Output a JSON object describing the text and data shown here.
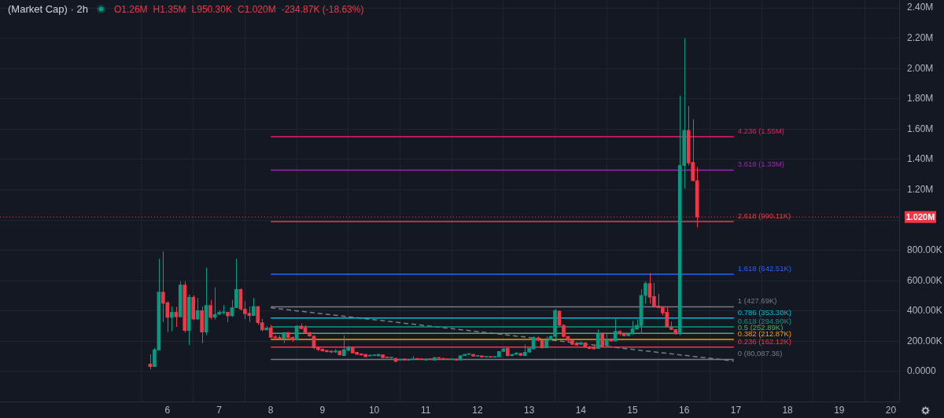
{
  "chart_data": {
    "type": "candlestick",
    "title": "(Market Cap) · 2h",
    "annotations": [
      "O1.26M",
      "H1.35M",
      "L950.30K",
      "C1.020M",
      "-234.87K (-18.63%)"
    ],
    "series": [
      {
        "x": [
          5.6667,
          5.75,
          5.8333,
          5.9167,
          6,
          6.0833,
          6.1667,
          6.25,
          6.3333,
          6.4167,
          6.5,
          6.5833,
          6.6667,
          6.75,
          6.8333,
          6.9167,
          7,
          7.0833,
          7.1667,
          7.25,
          7.3333,
          7.4167,
          7.5,
          7.5833,
          7.6667,
          7.75,
          7.8333,
          7.9167,
          8,
          8.0833,
          8.1667,
          8.25,
          8.3333,
          8.4167,
          8.5,
          8.5833,
          8.6667,
          8.75,
          8.8333,
          8.9167,
          9,
          9.0833,
          9.1667,
          9.25,
          9.3333,
          9.4167,
          9.5,
          9.5833,
          9.6667,
          9.75,
          9.8333,
          9.9167,
          10,
          10.0833,
          10.1667,
          10.25,
          10.3333,
          10.4167,
          10.5,
          10.5833,
          10.6667,
          10.75,
          10.8333,
          10.9167,
          11,
          11.0833,
          11.1667,
          11.25,
          11.3333,
          11.4167,
          11.5,
          11.5833,
          11.6667,
          11.75,
          11.8333,
          11.9167,
          12,
          12.0833,
          12.1667,
          12.25,
          12.3333,
          12.4167,
          12.5,
          12.5833,
          12.6667,
          12.75,
          12.8333,
          12.9167,
          13,
          13.0833,
          13.1667,
          13.25,
          13.3333,
          13.4167,
          13.5,
          13.5833,
          13.6667,
          13.75,
          13.8333,
          13.9167,
          14,
          14.0833,
          14.1667,
          14.25,
          14.3333,
          14.4167,
          14.5,
          14.5833,
          14.6667,
          14.75,
          14.8333,
          14.9167,
          15,
          15.0833,
          15.1667,
          15.25,
          15.3333,
          15.4167,
          15.5,
          15.5833,
          15.6667,
          15.75,
          15.8333,
          15.9167,
          16,
          16.0833,
          16.1667,
          16.25
        ],
        "ohlc": [
          [
            50000,
            115000,
            16000,
            33000
          ],
          [
            33000,
            157000,
            33000,
            145000
          ],
          [
            142000,
            745000,
            142000,
            525000
          ],
          [
            525000,
            793000,
            327000,
            451000
          ],
          [
            455000,
            465000,
            261000,
            358000
          ],
          [
            358000,
            430000,
            266000,
            392000
          ],
          [
            392000,
            428000,
            295000,
            361000
          ],
          [
            361000,
            595000,
            361000,
            572000
          ],
          [
            572000,
            595000,
            258000,
            271000
          ],
          [
            271000,
            508000,
            175000,
            491000
          ],
          [
            491000,
            503000,
            340000,
            347000
          ],
          [
            347000,
            486000,
            340000,
            403000
          ],
          [
            403000,
            430000,
            188000,
            261000
          ],
          [
            261000,
            686000,
            240000,
            437000
          ],
          [
            437000,
            473000,
            344000,
            358000
          ],
          [
            358000,
            555000,
            344000,
            378000
          ],
          [
            378000,
            404000,
            375000,
            392000
          ],
          [
            389000,
            439000,
            378000,
            392000
          ],
          [
            392000,
            395000,
            327000,
            368000
          ],
          [
            368000,
            473000,
            361000,
            422000
          ],
          [
            422000,
            745000,
            420000,
            543000
          ],
          [
            543000,
            548000,
            404000,
            413000
          ],
          [
            413000,
            465000,
            347000,
            382000
          ],
          [
            385000,
            430000,
            327000,
            370000
          ],
          [
            370000,
            486000,
            368000,
            430000
          ],
          [
            430000,
            432000,
            309000,
            323000
          ],
          [
            323000,
            347000,
            266000,
            275000
          ],
          [
            275000,
            301000,
            273000,
            289000
          ],
          [
            290000,
            309000,
            222000,
            226000
          ],
          [
            230000,
            240000,
            215000,
            223000
          ],
          [
            226000,
            240000,
            210000,
            220000
          ],
          [
            220000,
            260000,
            188000,
            258000
          ],
          [
            258000,
            262000,
            220000,
            223000
          ],
          [
            226000,
            232000,
            197000,
            209000
          ],
          [
            209000,
            306000,
            205000,
            301000
          ],
          [
            301000,
            318000,
            280000,
            283000
          ],
          [
            289000,
            306000,
            255000,
            258000
          ],
          [
            258000,
            262000,
            230000,
            235000
          ],
          [
            235000,
            240000,
            147000,
            157000
          ],
          [
            162000,
            168000,
            136000,
            145000
          ],
          [
            149000,
            152000,
            133000,
            136000
          ],
          [
            140000,
            143000,
            128000,
            131000
          ],
          [
            136000,
            140000,
            122000,
            129000
          ],
          [
            129000,
            148000,
            124000,
            136000
          ],
          [
            136000,
            140000,
            108000,
            110000
          ],
          [
            105000,
            240000,
            103000,
            145000
          ],
          [
            140000,
            170000,
            135000,
            162000
          ],
          [
            157000,
            160000,
            120000,
            123000
          ],
          [
            128000,
            130000,
            110000,
            114000
          ],
          [
            118000,
            120000,
            106000,
            110000
          ],
          [
            114000,
            116000,
            95000,
            98000
          ],
          [
            103000,
            112000,
            100000,
            109000
          ],
          [
            106000,
            112000,
            102000,
            108000
          ],
          [
            104000,
            116000,
            100000,
            114000
          ],
          [
            112000,
            114000,
            88000,
            92000
          ],
          [
            95000,
            98000,
            88000,
            92000
          ],
          [
            90000,
            96000,
            86000,
            93000
          ],
          [
            88000,
            92000,
            63000,
            67000
          ],
          [
            76000,
            86000,
            72000,
            82000
          ],
          [
            84000,
            86000,
            74000,
            76000
          ],
          [
            76000,
            84000,
            72000,
            80000
          ],
          [
            80000,
            101000,
            76000,
            84000
          ],
          [
            84000,
            88000,
            78000,
            82000
          ],
          [
            82000,
            86000,
            76000,
            80000
          ],
          [
            76000,
            86000,
            74000,
            84000
          ],
          [
            84000,
            88000,
            78000,
            80000
          ],
          [
            76000,
            95000,
            74000,
            93000
          ],
          [
            93000,
            96000,
            84000,
            88000
          ],
          [
            88000,
            90000,
            80000,
            81000
          ],
          [
            84000,
            88000,
            78000,
            80000
          ],
          [
            80000,
            86000,
            78000,
            84000
          ],
          [
            84000,
            86000,
            74000,
            76000
          ],
          [
            76000,
            108000,
            74000,
            105000
          ],
          [
            105000,
            118000,
            104000,
            114000
          ],
          [
            114000,
            120000,
            110000,
            117000
          ],
          [
            114000,
            118000,
            100000,
            102000
          ],
          [
            102000,
            108000,
            98000,
            104000
          ],
          [
            105000,
            107000,
            94000,
            96000
          ],
          [
            96000,
            102000,
            92000,
            99000
          ],
          [
            99000,
            102000,
            93000,
            95000
          ],
          [
            95000,
            100000,
            92000,
            97000
          ],
          [
            97000,
            136000,
            95000,
            133000
          ],
          [
            133000,
            155000,
            130000,
            150000
          ],
          [
            154000,
            156000,
            100000,
            105000
          ],
          [
            105000,
            118000,
            102000,
            114000
          ],
          [
            114000,
            128000,
            112000,
            123000
          ],
          [
            121000,
            124000,
            104000,
            107000
          ],
          [
            105000,
            180000,
            103000,
            128000
          ],
          [
            128000,
            158000,
            126000,
            154000
          ],
          [
            150000,
            232000,
            148000,
            226000
          ],
          [
            223000,
            232000,
            200000,
            206000
          ],
          [
            206000,
            210000,
            152000,
            157000
          ],
          [
            157000,
            232000,
            155000,
            209000
          ],
          [
            209000,
            240000,
            205000,
            232000
          ],
          [
            232000,
            413000,
            214000,
            404000
          ],
          [
            399000,
            404000,
            300000,
            306000
          ],
          [
            306000,
            312000,
            225000,
            232000
          ],
          [
            232000,
            236000,
            200000,
            206000
          ],
          [
            206000,
            210000,
            175000,
            180000
          ],
          [
            185000,
            192000,
            170000,
            175000
          ],
          [
            180000,
            200000,
            176000,
            190000
          ],
          [
            190000,
            195000,
            155000,
            160000
          ],
          [
            162000,
            170000,
            148000,
            152000
          ],
          [
            165000,
            172000,
            145000,
            150000
          ],
          [
            152000,
            278000,
            150000,
            248000
          ],
          [
            249000,
            259000,
            162000,
            171000
          ],
          [
            171000,
            259000,
            168000,
            214000
          ],
          [
            214000,
            220000,
            198000,
            202000
          ],
          [
            202000,
            347000,
            200000,
            266000
          ],
          [
            266000,
            272000,
            240000,
            249000
          ],
          [
            254000,
            258000,
            232000,
            237000
          ],
          [
            237000,
            252000,
            232000,
            249000
          ],
          [
            249000,
            335000,
            245000,
            283000
          ],
          [
            280000,
            344000,
            278000,
            306000
          ],
          [
            304000,
            543000,
            249000,
            503000
          ],
          [
            503000,
            594000,
            448000,
            582000
          ],
          [
            582000,
            650000,
            448000,
            491000
          ],
          [
            496000,
            586000,
            422000,
            430000
          ],
          [
            434000,
            513000,
            418000,
            422000
          ],
          [
            422000,
            430000,
            370000,
            387000
          ],
          [
            392000,
            430000,
            290000,
            295000
          ],
          [
            295000,
            330000,
            275000,
            278000
          ],
          [
            278000,
            282000,
            245000,
            249000
          ],
          [
            249000,
            1821000,
            240000,
            1360000
          ],
          [
            1360000,
            2200000,
            1208000,
            1592000
          ],
          [
            1592000,
            1752000,
            1360000,
            1377000
          ],
          [
            1381000,
            1666000,
            1255000,
            1260000
          ],
          [
            1260000,
            1350000,
            950300,
            1020000
          ]
        ],
        "colors": [
          "#f23645",
          "#089981",
          "#089981",
          "#f23645",
          "#f23645",
          "#089981",
          "#f23645",
          "#089981",
          "#f23645",
          "#089981",
          "#f23645",
          "#089981",
          "#f23645",
          "#089981",
          "#f23645",
          "#089981",
          "#089981",
          "#089981",
          "#f23645",
          "#089981",
          "#089981",
          "#f23645",
          "#f23645",
          "#f23645",
          "#089981",
          "#f23645",
          "#f23645",
          "#089981",
          "#f23645",
          "#f23645",
          "#f23645",
          "#089981",
          "#f23645",
          "#f23645",
          "#089981",
          "#f23645",
          "#f23645",
          "#f23645",
          "#f23645",
          "#f23645",
          "#f23645",
          "#f23645",
          "#f23645",
          "#089981",
          "#f23645",
          "#089981",
          "#089981",
          "#f23645",
          "#f23645",
          "#f23645",
          "#f23645",
          "#089981",
          "#089981",
          "#089981",
          "#f23645",
          "#f23645",
          "#089981",
          "#f23645",
          "#089981",
          "#f23645",
          "#089981",
          "#089981",
          "#f23645",
          "#f23645",
          "#089981",
          "#f23645",
          "#089981",
          "#f23645",
          "#f23645",
          "#f23645",
          "#089981",
          "#f23645",
          "#089981",
          "#089981",
          "#089981",
          "#f23645",
          "#089981",
          "#f23645",
          "#089981",
          "#f23645",
          "#089981",
          "#089981",
          "#089981",
          "#f23645",
          "#089981",
          "#089981",
          "#f23645",
          "#089981",
          "#089981",
          "#089981",
          "#f23645",
          "#f23645",
          "#089981",
          "#089981",
          "#089981",
          "#f23645",
          "#f23645",
          "#f23645",
          "#f23645",
          "#f23645",
          "#089981",
          "#f23645",
          "#f23645",
          "#f23645",
          "#089981",
          "#f23645",
          "#089981",
          "#f23645",
          "#089981",
          "#f23645",
          "#f23645",
          "#089981",
          "#089981",
          "#089981",
          "#089981",
          "#089981",
          "#f23645",
          "#f23645",
          "#f23645",
          "#f23645",
          "#f23645",
          "#f23645",
          "#f23645",
          "#089981",
          "#089981",
          "#f23645",
          "#f23645",
          "#f23645"
        ]
      },
      {
        "type": "line",
        "name": "4.236 (1.55M)",
        "color": "#e91e63",
        "x": [
          8,
          16.96
        ],
        "values": [
          1550000,
          1550000
        ]
      },
      {
        "type": "line",
        "name": "3.618 (1.33M)",
        "color": "#9c27b0",
        "x": [
          8,
          16.96
        ],
        "values": [
          1330000,
          1330000
        ]
      },
      {
        "type": "line",
        "name": "2.618 (990.11K)",
        "color": "#f23645",
        "x": [
          8,
          16.96
        ],
        "values": [
          990110,
          990110
        ]
      },
      {
        "type": "line",
        "name": "1.618 (642.51K)",
        "color": "#2962ff",
        "x": [
          8,
          16.96
        ],
        "values": [
          642510,
          642510
        ]
      },
      {
        "type": "line",
        "name": "1 (427.69K)",
        "color": "#787b86",
        "x": [
          8,
          16.96
        ],
        "values": [
          427690,
          427690
        ]
      },
      {
        "type": "line",
        "name": "0.786 (353.30K)",
        "color": "#00bcd4",
        "x": [
          8,
          16.96
        ],
        "values": [
          353300,
          353300
        ]
      },
      {
        "type": "line",
        "name": "0.618 (294.90K)",
        "color": "#089981",
        "x": [
          8,
          16.96
        ],
        "values": [
          294900,
          294900
        ]
      },
      {
        "type": "line",
        "name": "0.5 (252.89K)",
        "color": "#4caf50",
        "x": [
          8,
          16.96
        ],
        "values": [
          252890,
          252890
        ]
      },
      {
        "type": "line",
        "name": "0.382 (212.87K)",
        "color": "#ff9800",
        "x": [
          8,
          16.96
        ],
        "values": [
          212870,
          212870
        ]
      },
      {
        "type": "line",
        "name": "0.236 (162.12K)",
        "color": "#f23645",
        "x": [
          8,
          16.96
        ],
        "values": [
          162120,
          162120
        ]
      },
      {
        "type": "line",
        "name": "0 (80,087.36)",
        "color": "#787b86",
        "x": [
          8,
          16.96
        ],
        "values": [
          80087.36,
          80087.36
        ]
      },
      {
        "type": "line",
        "color": "#787b86",
        "line_style": "dashed",
        "x": [
          8,
          16.96
        ],
        "values": [
          421000,
          70000
        ]
      }
    ],
    "ref_lines": [
      {
        "axis": "y",
        "value": 1020000,
        "label": "1.020M",
        "color": "#f23645",
        "line_style": "dotted"
      }
    ],
    "xlim": [
      2.76,
      20.16
    ],
    "xticks": [
      6,
      7,
      8,
      9,
      10,
      11,
      12,
      13,
      14,
      15,
      16,
      17,
      18,
      19,
      20
    ],
    "ylim": [
      -197000,
      2452000
    ],
    "yticks": [
      {
        "value": 0,
        "label": "0.0000"
      },
      {
        "value": 200000,
        "label": "200.00K"
      },
      {
        "value": 400000,
        "label": "400.00K"
      },
      {
        "value": 600000,
        "label": "600.00K"
      },
      {
        "value": 800000,
        "label": "800.00K"
      },
      {
        "value": 1000000,
        "label": null
      },
      {
        "value": 1200000,
        "label": "1.20M"
      },
      {
        "value": 1400000,
        "label": "1.40M"
      },
      {
        "value": 1600000,
        "label": "1.60M"
      },
      {
        "value": 1800000,
        "label": "1.80M"
      },
      {
        "value": 2000000,
        "label": "2.00M"
      },
      {
        "value": 2200000,
        "label": "2.20M"
      },
      {
        "value": 2400000,
        "label": "2.40M"
      }
    ],
    "grid": true
  }
}
